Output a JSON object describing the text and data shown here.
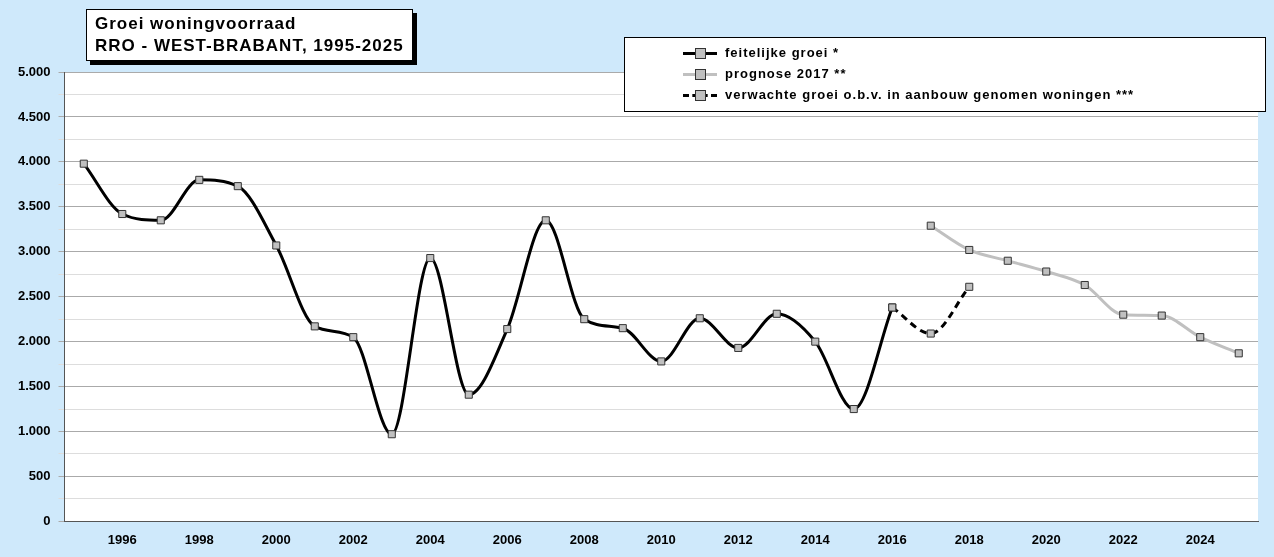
{
  "chart_data": {
    "type": "line",
    "title": "Groei woningvoorraad",
    "subtitle": "RRO - WEST-BRABANT, 1995-2025",
    "categories": [
      null,
      "1996",
      null,
      "1998",
      null,
      "2000",
      null,
      "2002",
      null,
      "2004",
      null,
      "2006",
      null,
      "2008",
      null,
      "2010",
      null,
      "2012",
      null,
      "2014",
      null,
      "2016",
      null,
      "2018",
      null,
      "2020",
      null,
      "2022",
      null,
      "2024",
      null
    ],
    "series": [
      {
        "name": "feitelijke groei *",
        "color": "#000000",
        "line_style": "solid",
        "values": [
          3980,
          3420,
          3350,
          3800,
          3730,
          3070,
          2170,
          2050,
          970,
          2930,
          1410,
          2140,
          3350,
          2250,
          2150,
          1780,
          2260,
          1930,
          2310,
          2000,
          1250,
          2380,
          null,
          null,
          null,
          null,
          null,
          null,
          null,
          null,
          null
        ]
      },
      {
        "name": "prognose 2017 **",
        "color": "#c0c0c0",
        "line_style": "solid",
        "values": [
          null,
          null,
          null,
          null,
          null,
          null,
          null,
          null,
          null,
          null,
          null,
          null,
          null,
          null,
          null,
          null,
          null,
          null,
          null,
          null,
          null,
          null,
          3290,
          3020,
          2900,
          2780,
          2630,
          2300,
          2290,
          2050,
          1870
        ]
      },
      {
        "name": "verwachte groei o.b.v. in aanbouw genomen woningen ***",
        "color": "#000000",
        "line_style": "dashed",
        "values": [
          null,
          null,
          null,
          null,
          null,
          null,
          null,
          null,
          null,
          null,
          null,
          null,
          null,
          null,
          null,
          null,
          null,
          null,
          null,
          null,
          null,
          2380,
          2090,
          2610,
          null,
          null,
          null,
          null,
          null,
          null,
          null
        ]
      }
    ],
    "ylim": [
      0,
      5000
    ],
    "yticks": [
      0,
      {
        "value": 250,
        "label": null
      },
      500,
      {
        "value": 750,
        "label": null
      },
      {
        "value": 1000,
        "label": "1.000"
      },
      {
        "value": 1250,
        "label": null
      },
      {
        "value": 1500,
        "label": "1.500"
      },
      {
        "value": 1750,
        "label": null
      },
      {
        "value": 2000,
        "label": "2.000"
      },
      {
        "value": 2250,
        "label": null
      },
      {
        "value": 2500,
        "label": "2.500"
      },
      {
        "value": 2750,
        "label": null
      },
      {
        "value": 3000,
        "label": "3.000"
      },
      {
        "value": 3250,
        "label": null
      },
      {
        "value": 3500,
        "label": "3.500"
      },
      {
        "value": 3750,
        "label": null
      },
      {
        "value": 4000,
        "label": "4.000"
      },
      {
        "value": 4250,
        "label": null
      },
      {
        "value": 4500,
        "label": "4.500"
      },
      {
        "value": 4750,
        "label": null
      },
      {
        "value": 5000,
        "label": "5.000"
      }
    ],
    "grid": "y",
    "legend": "top right",
    "marker": "square"
  }
}
